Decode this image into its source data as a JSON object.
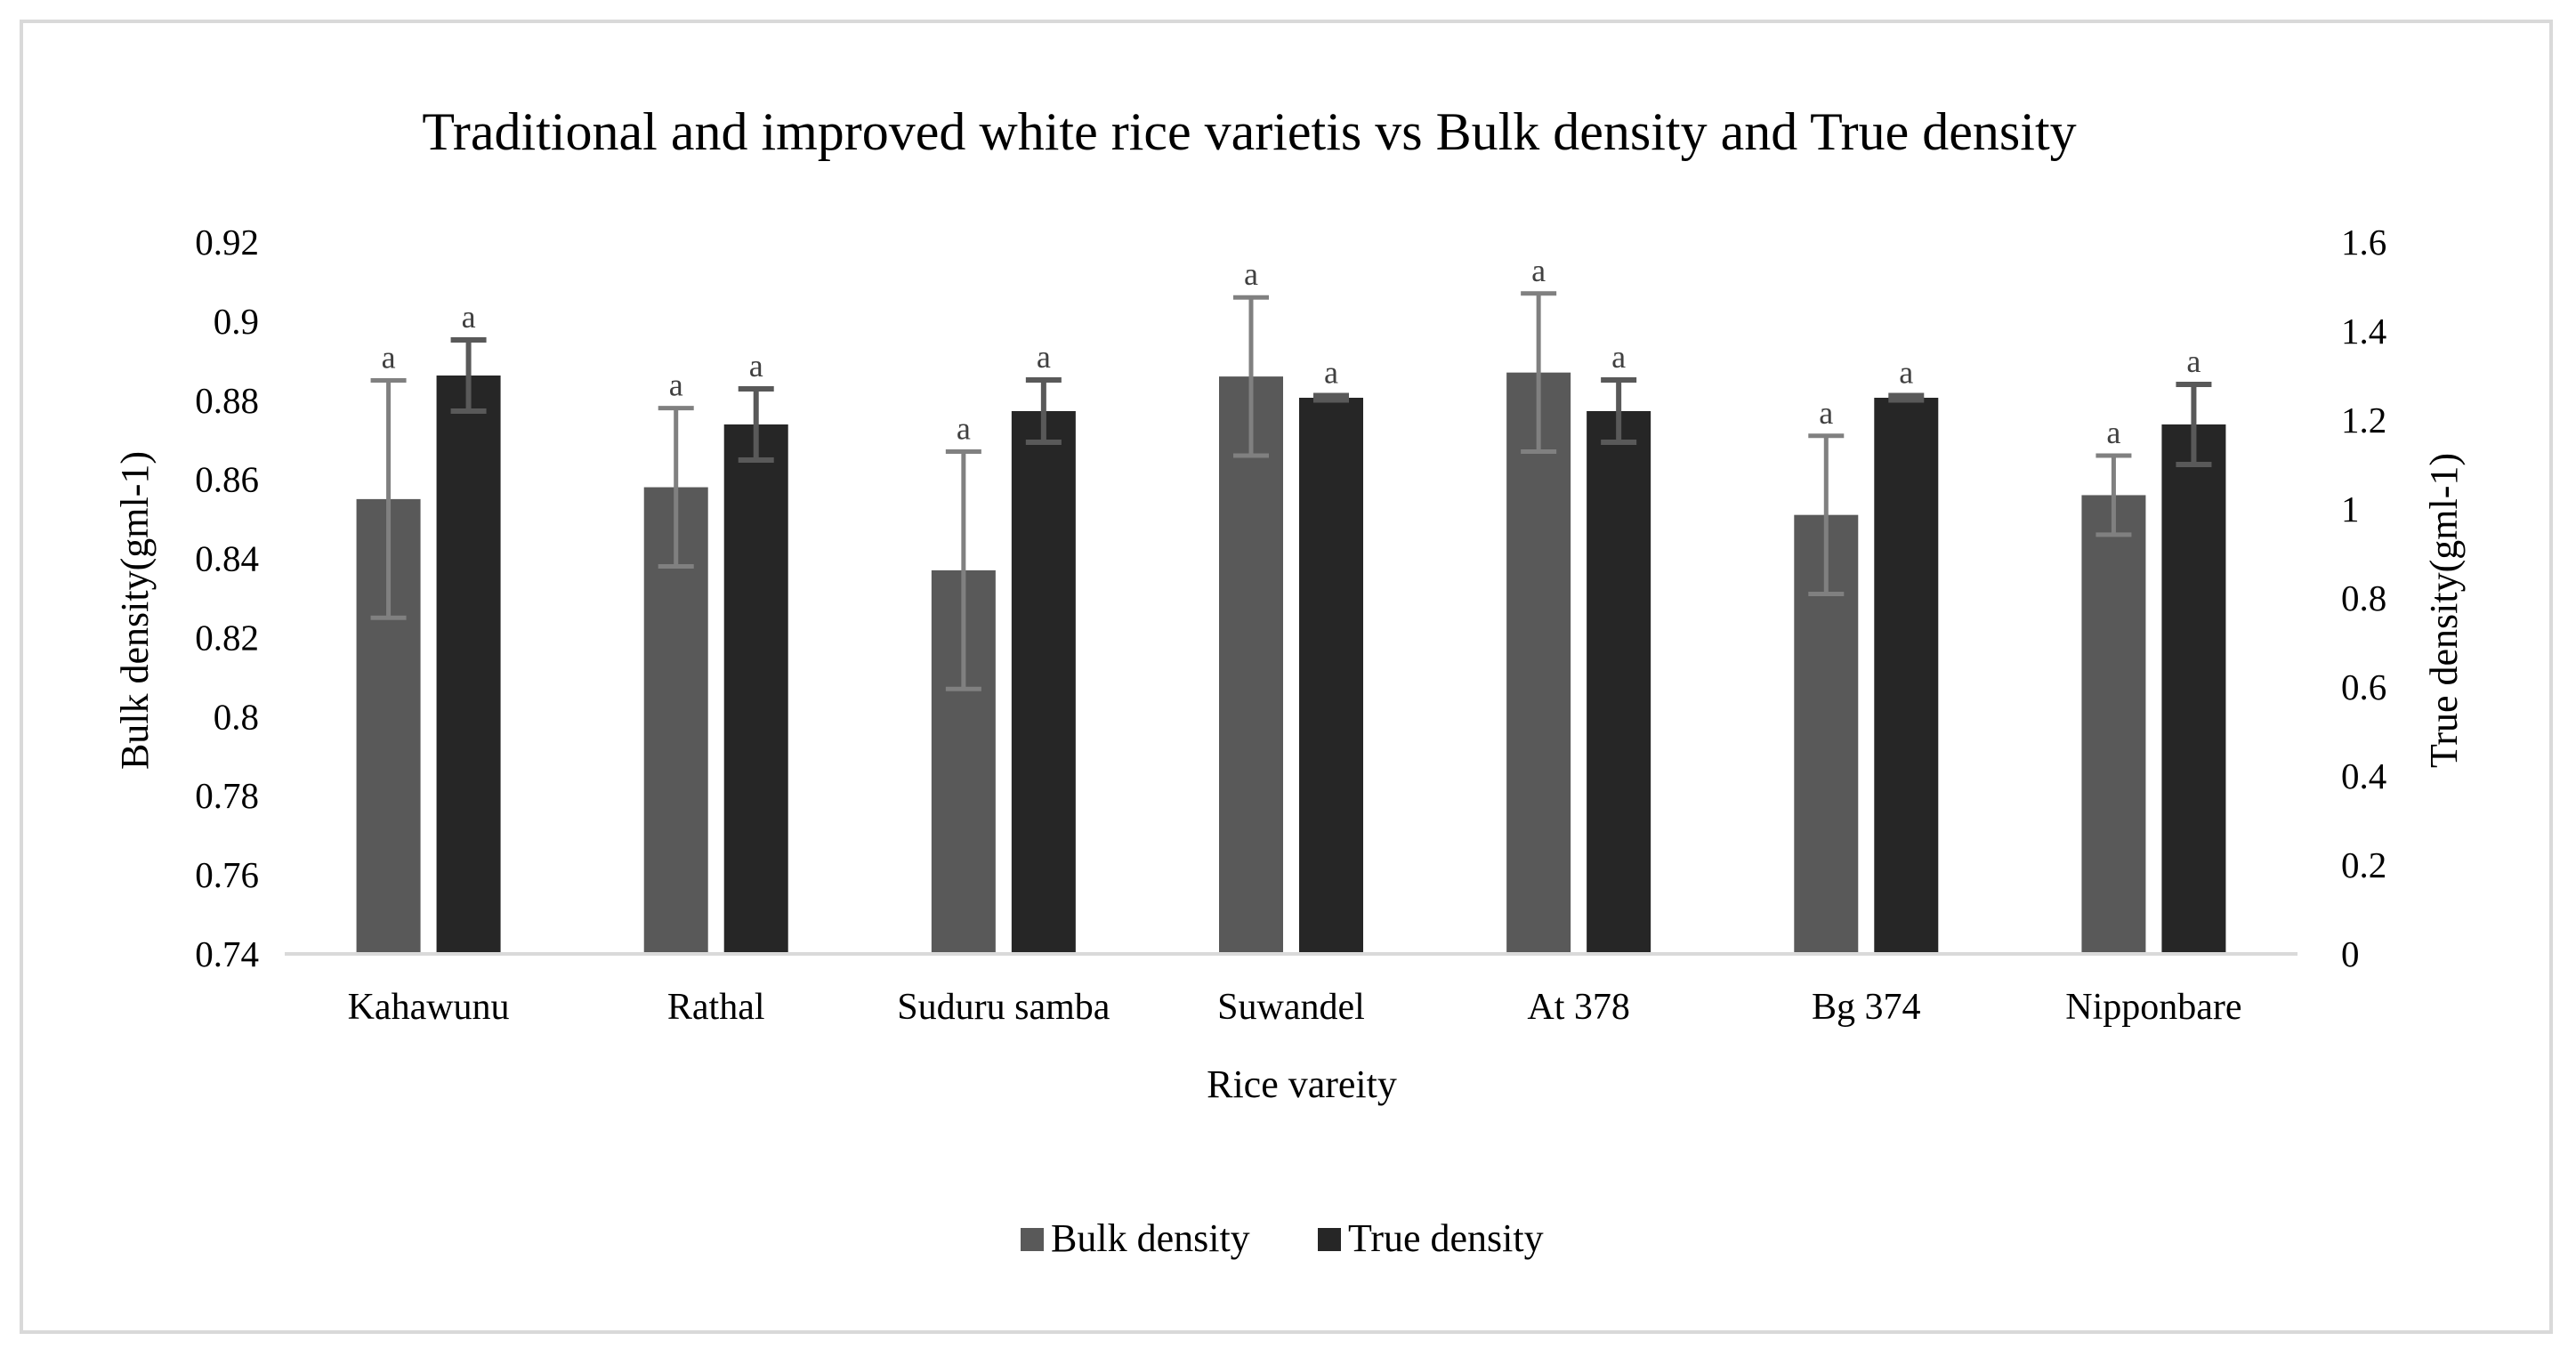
{
  "chart_data": {
    "type": "bar",
    "title": "Traditional and improved  white rice varietis vs Bulk density and True density",
    "xlabel": "Rice vareity",
    "ylabel": "Bulk density(gml-1)",
    "y2label": "True density(gml-1)",
    "categories": [
      "Kahawunu",
      "Rathal",
      "Suduru samba",
      "Suwandel",
      "At 378",
      "Bg 374",
      "Nipponbare"
    ],
    "ylim": [
      0.74,
      0.92
    ],
    "y2lim": [
      0,
      1.6
    ],
    "yticks": [
      "0.74",
      "0.76",
      "0.78",
      "0.8",
      "0.82",
      "0.84",
      "0.86",
      "0.88",
      "0.9",
      "0.92"
    ],
    "y2ticks": [
      "0",
      "0.2",
      "0.4",
      "0.6",
      "0.8",
      "1",
      "1.2",
      "1.4",
      "1.6"
    ],
    "series": [
      {
        "name": "Bulk density",
        "axis": "left",
        "color": "#595959",
        "errcolor": "#808080",
        "values": [
          0.855,
          0.858,
          0.837,
          0.886,
          0.887,
          0.851,
          0.856
        ],
        "errors": [
          0.03,
          0.02,
          0.03,
          0.02,
          0.02,
          0.02,
          0.01
        ],
        "labels": [
          "a",
          "a",
          "a",
          "a",
          "a",
          "a",
          "a"
        ]
      },
      {
        "name": "True density",
        "axis": "right",
        "color": "#262626",
        "errcolor": "#595959",
        "values": [
          1.3,
          1.19,
          1.22,
          1.25,
          1.22,
          1.25,
          1.19
        ],
        "errors": [
          0.08,
          0.08,
          0.07,
          0.005,
          0.07,
          0.005,
          0.09
        ],
        "labels": [
          "a",
          "a",
          "a",
          "a",
          "a",
          "a",
          "a"
        ]
      }
    ],
    "legend": "bottom-center",
    "grid": false
  }
}
